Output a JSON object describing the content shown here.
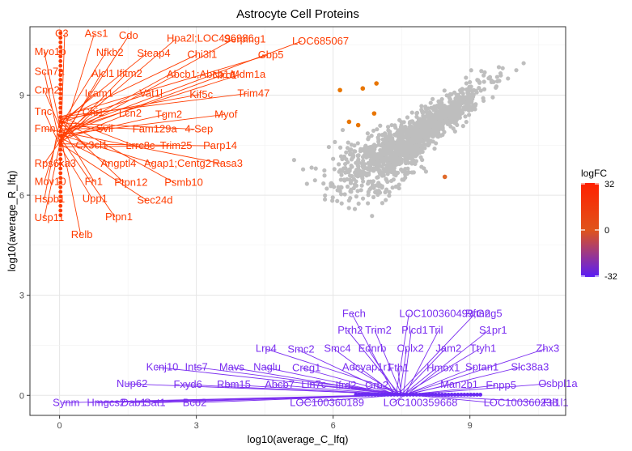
{
  "chart_data": {
    "type": "scatter",
    "title": "Astrocyte Cell Proteins",
    "xlabel": "log10(average_C_lfq)",
    "ylabel": "log10(average_R_lfq)",
    "xlim": [
      -0.65,
      11.1
    ],
    "ylim": [
      -0.6,
      11.05
    ],
    "x_ticks": [
      0,
      3,
      6,
      9
    ],
    "y_ticks": [
      0,
      3,
      6,
      9
    ],
    "grid": true,
    "legend": {
      "title": "logFC",
      "placement": "right",
      "min": -32,
      "max": 32,
      "ticks": [
        32,
        0,
        -32
      ],
      "colors": {
        "low": "#5a1df5",
        "mid": "#e0541a",
        "high": "#ff2000"
      }
    },
    "grey_color": "#bebebe",
    "highlight_points": [
      {
        "x": 6.15,
        "y": 9.15,
        "logFC": 2
      },
      {
        "x": 6.65,
        "y": 9.2,
        "logFC": 2
      },
      {
        "x": 6.95,
        "y": 9.35,
        "logFC": 2
      },
      {
        "x": 6.35,
        "y": 8.2,
        "logFC": 2
      },
      {
        "x": 6.55,
        "y": 8.1,
        "logFC": 2
      },
      {
        "x": 6.9,
        "y": 8.45,
        "logFC": 2
      },
      {
        "x": 8.45,
        "y": 6.55,
        "logFC": -3
      }
    ],
    "labels_up": [
      {
        "text": "C3",
        "tx": -0.1,
        "ty": 10.75
      },
      {
        "text": "Ass1",
        "tx": 0.55,
        "ty": 10.75
      },
      {
        "text": "Cdo",
        "tx": 1.3,
        "ty": 10.68
      },
      {
        "text": "Hpa2l;LOC496986",
        "tx": 2.35,
        "ty": 10.6
      },
      {
        "text": "Serping1",
        "tx": 3.6,
        "ty": 10.58
      },
      {
        "text": "LOC685067",
        "tx": 5.1,
        "ty": 10.52
      },
      {
        "text": "Myo1b",
        "tx": -0.55,
        "ty": 10.2
      },
      {
        "text": "Nfkb2",
        "tx": 0.8,
        "ty": 10.18
      },
      {
        "text": "Steap4",
        "tx": 1.7,
        "ty": 10.15
      },
      {
        "text": "Chi3l1",
        "tx": 2.8,
        "ty": 10.12
      },
      {
        "text": "Gbp5",
        "tx": 4.35,
        "ty": 10.1
      },
      {
        "text": "Scn7a",
        "tx": -0.55,
        "ty": 9.6
      },
      {
        "text": "Alcl1",
        "tx": 0.7,
        "ty": 9.55
      },
      {
        "text": "Ifitm2",
        "tx": 1.25,
        "ty": 9.55
      },
      {
        "text": "Abcb1;Abcb1a",
        "tx": 2.35,
        "ty": 9.52
      },
      {
        "text": "Nlrc1",
        "tx": 3.35,
        "ty": 9.5
      },
      {
        "text": "Mdm1a",
        "tx": 3.75,
        "ty": 9.52
      },
      {
        "text": "Cnn2",
        "tx": -0.55,
        "ty": 9.05
      },
      {
        "text": "Icam1",
        "tx": 0.55,
        "ty": 8.95
      },
      {
        "text": "Vat1l",
        "tx": 1.75,
        "ty": 8.95
      },
      {
        "text": "Kif5c",
        "tx": 2.85,
        "ty": 8.92
      },
      {
        "text": "Trim47",
        "tx": 3.9,
        "ty": 8.95
      },
      {
        "text": "Tnc",
        "tx": -0.55,
        "ty": 8.4
      },
      {
        "text": "Chi1",
        "tx": 0.5,
        "ty": 8.38
      },
      {
        "text": "Lcn2",
        "tx": 1.3,
        "ty": 8.35
      },
      {
        "text": "Tgm2",
        "tx": 2.1,
        "ty": 8.32
      },
      {
        "text": "Myof",
        "tx": 3.4,
        "ty": 8.32
      },
      {
        "text": "Fmn",
        "tx": -0.55,
        "ty": 7.9
      },
      {
        "text": "Svil",
        "tx": 0.8,
        "ty": 7.9
      },
      {
        "text": "Fam129a",
        "tx": 1.6,
        "ty": 7.88
      },
      {
        "text": "4-Sep",
        "tx": 2.75,
        "ty": 7.88
      },
      {
        "text": "Cx3cl1",
        "tx": 0.35,
        "ty": 7.4
      },
      {
        "text": "Lrrc8c",
        "tx": 1.45,
        "ty": 7.38
      },
      {
        "text": "Trim25",
        "tx": 2.2,
        "ty": 7.38
      },
      {
        "text": "Parp14",
        "tx": 3.15,
        "ty": 7.38
      },
      {
        "text": "Rps6ka3",
        "tx": -0.55,
        "ty": 6.85
      },
      {
        "text": "Angptl4",
        "tx": 0.9,
        "ty": 6.85
      },
      {
        "text": "Agap1;Centg2",
        "tx": 1.85,
        "ty": 6.85
      },
      {
        "text": "Rasa3",
        "tx": 3.35,
        "ty": 6.85
      },
      {
        "text": "Mov10",
        "tx": -0.55,
        "ty": 6.3
      },
      {
        "text": "Fn1",
        "tx": 0.55,
        "ty": 6.3
      },
      {
        "text": "Ptpn12",
        "tx": 1.2,
        "ty": 6.28
      },
      {
        "text": "Psmb10",
        "tx": 2.3,
        "ty": 6.28
      },
      {
        "text": "Hspb1",
        "tx": -0.55,
        "ty": 5.78
      },
      {
        "text": "Upp1",
        "tx": 0.5,
        "ty": 5.8
      },
      {
        "text": "Sec24d",
        "tx": 1.7,
        "ty": 5.75
      },
      {
        "text": "Usp11",
        "tx": -0.55,
        "ty": 5.22
      },
      {
        "text": "Ptpn1",
        "tx": 1.0,
        "ty": 5.25
      },
      {
        "text": "Relb",
        "tx": 0.25,
        "ty": 4.72
      }
    ],
    "labels_down": [
      {
        "text": "Fech",
        "tx": 6.2,
        "ty": 2.35
      },
      {
        "text": "LOC100360499;Gng5",
        "tx": 7.45,
        "ty": 2.35
      },
      {
        "text": "Rftn2",
        "tx": 8.9,
        "ty": 2.35
      },
      {
        "text": "Ptrh2",
        "tx": 6.1,
        "ty": 1.85
      },
      {
        "text": "Trim2",
        "tx": 6.7,
        "ty": 1.85
      },
      {
        "text": "Plcd1",
        "tx": 7.5,
        "ty": 1.85
      },
      {
        "text": "Tril",
        "tx": 8.1,
        "ty": 1.85
      },
      {
        "text": "S1pr1",
        "tx": 9.2,
        "ty": 1.85
      },
      {
        "text": "Lrp4",
        "tx": 4.3,
        "ty": 1.3
      },
      {
        "text": "Smc2",
        "tx": 5.0,
        "ty": 1.28
      },
      {
        "text": "Smc4",
        "tx": 5.8,
        "ty": 1.3
      },
      {
        "text": "Ednrb",
        "tx": 6.55,
        "ty": 1.3
      },
      {
        "text": "Cplx2",
        "tx": 7.4,
        "ty": 1.3
      },
      {
        "text": "Jam2",
        "tx": 8.25,
        "ty": 1.3
      },
      {
        "text": "Ttyh1",
        "tx": 9.0,
        "ty": 1.3
      },
      {
        "text": "Zhx3",
        "tx": 10.45,
        "ty": 1.3
      },
      {
        "text": "Kcnj10",
        "tx": 1.9,
        "ty": 0.75
      },
      {
        "text": "Ints7",
        "tx": 2.75,
        "ty": 0.75
      },
      {
        "text": "Mavs",
        "tx": 3.5,
        "ty": 0.75
      },
      {
        "text": "Naglu",
        "tx": 4.25,
        "ty": 0.75
      },
      {
        "text": "Creg1",
        "tx": 5.1,
        "ty": 0.72
      },
      {
        "text": "Adcyap1r1",
        "tx": 6.2,
        "ty": 0.75
      },
      {
        "text": "Fth1",
        "tx": 7.2,
        "ty": 0.72
      },
      {
        "text": "Hmox1",
        "tx": 8.05,
        "ty": 0.72
      },
      {
        "text": "Sptan1",
        "tx": 8.9,
        "ty": 0.75
      },
      {
        "text": "Slc38a3",
        "tx": 9.9,
        "ty": 0.75
      },
      {
        "text": "Nup62",
        "tx": 1.25,
        "ty": 0.25
      },
      {
        "text": "Fxyd6",
        "tx": 2.5,
        "ty": 0.23
      },
      {
        "text": "Rbm15",
        "tx": 3.45,
        "ty": 0.23
      },
      {
        "text": "Abcb7",
        "tx": 4.5,
        "ty": 0.22
      },
      {
        "text": "Lin7c",
        "tx": 5.3,
        "ty": 0.22
      },
      {
        "text": "Ifrd2",
        "tx": 6.05,
        "ty": 0.2
      },
      {
        "text": "Grb2",
        "tx": 6.7,
        "ty": 0.2
      },
      {
        "text": "Man2b1",
        "tx": 8.35,
        "ty": 0.22
      },
      {
        "text": "Enpp5",
        "tx": 9.35,
        "ty": 0.2
      },
      {
        "text": "Osbpl1a",
        "tx": 10.5,
        "ty": 0.25
      },
      {
        "text": "Synm",
        "tx": -0.15,
        "ty": -0.32
      },
      {
        "text": "Hmgcs2",
        "tx": 0.6,
        "ty": -0.32
      },
      {
        "text": "Dab1",
        "tx": 1.35,
        "ty": -0.32
      },
      {
        "text": "Sat1",
        "tx": 1.85,
        "ty": -0.32
      },
      {
        "text": "Bco2",
        "tx": 2.7,
        "ty": -0.32
      },
      {
        "text": "LOC100360189",
        "tx": 5.05,
        "ty": -0.32
      },
      {
        "text": "LOC100359668",
        "tx": 7.1,
        "ty": -0.32
      },
      {
        "text": "LOC100360238",
        "tx": 9.3,
        "ty": -0.32
      },
      {
        "text": "Ftl1l1",
        "tx": 10.6,
        "ty": -0.32
      }
    ]
  }
}
